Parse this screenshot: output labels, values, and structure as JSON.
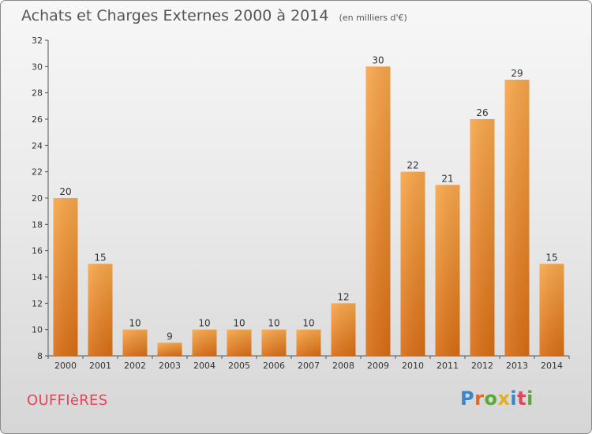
{
  "chart_data": {
    "type": "bar",
    "title": "Achats et Charges Externes 2000 à 2014",
    "subtitle": "(en milliers d'€)",
    "categories": [
      "2000",
      "2001",
      "2002",
      "2003",
      "2004",
      "2005",
      "2006",
      "2007",
      "2008",
      "2009",
      "2010",
      "2011",
      "2012",
      "2013",
      "2014"
    ],
    "values": [
      20,
      15,
      10,
      9,
      10,
      10,
      10,
      10,
      12,
      30,
      22,
      21,
      26,
      29,
      15
    ],
    "ylim": [
      8,
      32
    ],
    "yticks": [
      8,
      10,
      12,
      14,
      16,
      18,
      20,
      22,
      24,
      26,
      28,
      30,
      32
    ],
    "xlabel": "",
    "ylabel": "",
    "grid": false,
    "bar_color": "#f0902a"
  },
  "footer": {
    "commune": "OUFFIèRES",
    "brand_letters": [
      "P",
      "r",
      "o",
      "x",
      "i",
      "t",
      "i"
    ]
  }
}
